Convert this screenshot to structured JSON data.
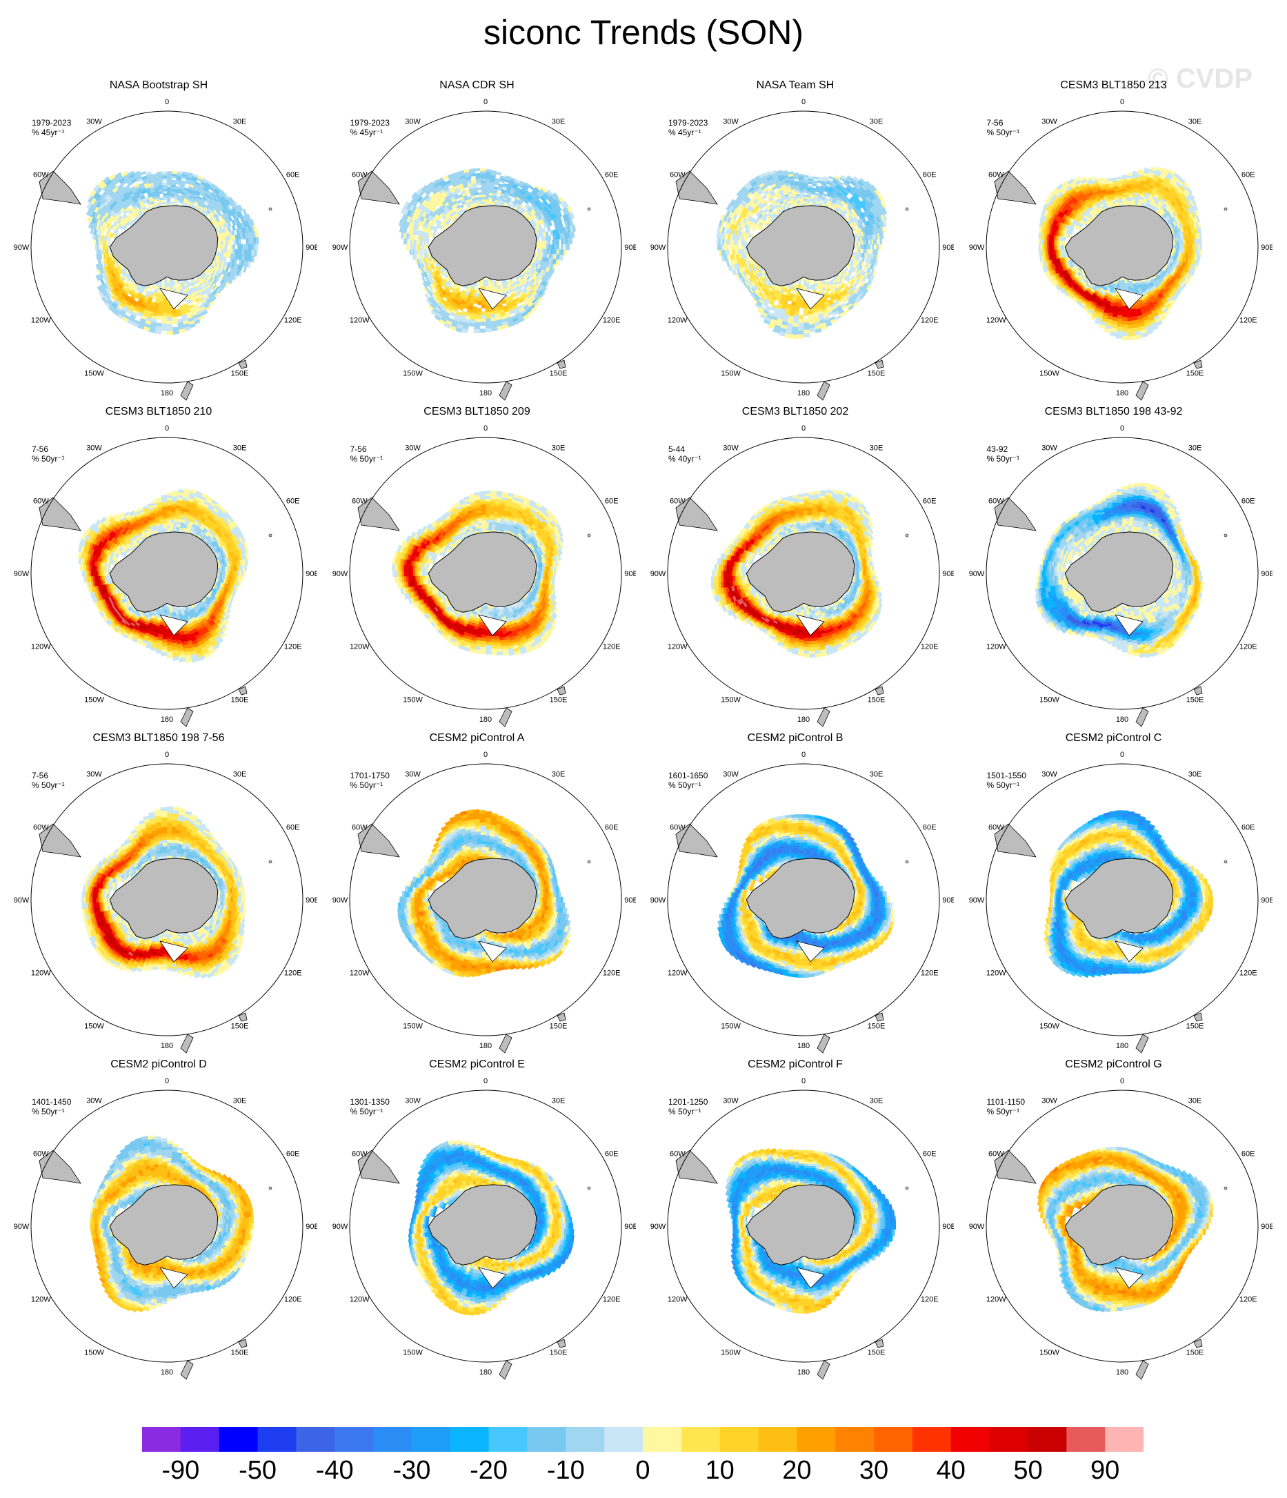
{
  "figure": {
    "title": "siconc Trends (SON)",
    "watermark": "© CVDP"
  },
  "map_labels": {
    "longitudes": [
      "0",
      "30E",
      "60E",
      "90E",
      "120E",
      "150E",
      "180",
      "150W",
      "120W",
      "90W",
      "60W",
      "30W"
    ]
  },
  "colorbar": {
    "colors": [
      "#8a2be2",
      "#5a1ff0",
      "#0000ff",
      "#1e3cf0",
      "#3c64e6",
      "#3c78f0",
      "#2c8cf5",
      "#1e9ef7",
      "#0ab4ff",
      "#46c8ff",
      "#78c8f0",
      "#a0d6f0",
      "#c8e6f5",
      "#fff8a0",
      "#ffe650",
      "#ffd228",
      "#ffbe14",
      "#ffa000",
      "#ff8200",
      "#ff6400",
      "#ff3200",
      "#f00000",
      "#dc0000",
      "#c80000",
      "#e65a5a",
      "#ffb4b4"
    ],
    "labels": [
      "-90",
      "-50",
      "-40",
      "-30",
      "-20",
      "-10",
      "0",
      "10",
      "20",
      "30",
      "40",
      "50",
      "90"
    ]
  },
  "panels": [
    {
      "title": "NASA Bootstrap SH",
      "period": "1979-2023",
      "units": "% 45yr⁻¹",
      "pattern": "obs",
      "intensity": 0.35,
      "speckle": true
    },
    {
      "title": "NASA CDR SH",
      "period": "1979-2023",
      "units": "% 45yr⁻¹",
      "pattern": "obs",
      "intensity": 0.35,
      "speckle": true
    },
    {
      "title": "NASA Team SH",
      "period": "1979-2023",
      "units": "% 45yr⁻¹",
      "pattern": "obs",
      "intensity": 0.3,
      "speckle": true
    },
    {
      "title": "CESM3 BLT1850 213",
      "period": "7-56",
      "units": "% 50yr⁻¹",
      "pattern": "redring",
      "intensity": 0.8,
      "speckle": false
    },
    {
      "title": "CESM3 BLT1850 210",
      "period": "7-56",
      "units": "% 50yr⁻¹",
      "pattern": "redring",
      "intensity": 0.85,
      "speckle": false
    },
    {
      "title": "CESM3 BLT1850 209",
      "period": "7-56",
      "units": "% 50yr⁻¹",
      "pattern": "redring",
      "intensity": 0.8,
      "speckle": false
    },
    {
      "title": "CESM3 BLT1850 202",
      "period": "5-44",
      "units": "% 40yr⁻¹",
      "pattern": "redring",
      "intensity": 0.85,
      "speckle": false
    },
    {
      "title": "CESM3 BLT1850 198 43-92",
      "period": "43-92",
      "units": "% 50yr⁻¹",
      "pattern": "bluering",
      "intensity": 0.7,
      "speckle": false
    },
    {
      "title": "CESM3 BLT1850 198 7-56",
      "period": "7-56",
      "units": "% 50yr⁻¹",
      "pattern": "redring",
      "intensity": 0.8,
      "speckle": false
    },
    {
      "title": "CESM2 piControl A",
      "period": "1701-1750",
      "units": "% 50yr⁻¹",
      "pattern": "mixed",
      "intensity": 0.35,
      "speckle": false
    },
    {
      "title": "CESM2 piControl B",
      "period": "1601-1650",
      "units": "% 50yr⁻¹",
      "pattern": "mixedblue",
      "intensity": 0.45,
      "speckle": false
    },
    {
      "title": "CESM2 piControl C",
      "period": "1501-1550",
      "units": "% 50yr⁻¹",
      "pattern": "mixedblue",
      "intensity": 0.4,
      "speckle": false
    },
    {
      "title": "CESM2 piControl D",
      "period": "1401-1450",
      "units": "% 50yr⁻¹",
      "pattern": "mixed",
      "intensity": 0.3,
      "speckle": false
    },
    {
      "title": "CESM2 piControl E",
      "period": "1301-1350",
      "units": "% 50yr⁻¹",
      "pattern": "mixedblue",
      "intensity": 0.4,
      "speckle": false
    },
    {
      "title": "CESM2 piControl F",
      "period": "1201-1250",
      "units": "% 50yr⁻¹",
      "pattern": "mixedblue",
      "intensity": 0.4,
      "speckle": false
    },
    {
      "title": "CESM2 piControl G",
      "period": "1101-1150",
      "units": "% 50yr⁻¹",
      "pattern": "mixed",
      "intensity": 0.35,
      "speckle": false
    }
  ]
}
